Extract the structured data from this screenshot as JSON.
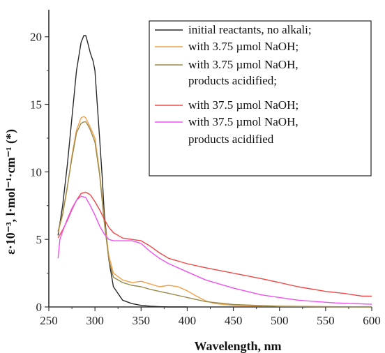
{
  "chart_data": {
    "type": "line",
    "title": "",
    "xlabel": "Wavelength, nm",
    "ylabel": "ε·10⁻³, l·mol⁻¹·cm⁻¹ (*)",
    "xlim": [
      250,
      600
    ],
    "ylim": [
      0,
      22
    ],
    "xticks": [
      250,
      300,
      350,
      400,
      450,
      500,
      550,
      600
    ],
    "yticks": [
      0,
      5,
      10,
      15,
      20
    ],
    "xtick_labels": [
      "250",
      "300",
      "350",
      "400",
      "450",
      "500",
      "550",
      "600"
    ],
    "ytick_labels": [
      "0",
      "5",
      "10",
      "15",
      "20"
    ],
    "grid": false,
    "legend_position": "top-right",
    "series": [
      {
        "name": "initial reactants, no alkali;",
        "color": "#2a2a2a",
        "x": [
          260,
          265,
          270,
          275,
          280,
          285,
          288,
          290,
          292,
          295,
          298,
          300,
          302,
          305,
          308,
          310,
          315,
          320,
          330,
          340,
          350,
          360,
          370,
          380,
          400
        ],
        "y": [
          5.3,
          7.5,
          10.5,
          14.0,
          17.5,
          19.6,
          20.1,
          20.1,
          19.6,
          18.8,
          18.2,
          17.5,
          15.5,
          12.5,
          9.5,
          7.0,
          3.5,
          1.5,
          0.5,
          0.25,
          0.12,
          0.05,
          0.02,
          0.0,
          0.0
        ]
      },
      {
        "name": "with 3.75 µmol NaOH;",
        "color": "#f2a04a",
        "x": [
          260,
          265,
          270,
          275,
          280,
          285,
          288,
          290,
          292,
          295,
          300,
          305,
          310,
          315,
          320,
          330,
          340,
          350,
          360,
          370,
          380,
          390,
          400,
          410,
          420,
          430,
          450,
          500,
          550,
          600
        ],
        "y": [
          5.5,
          6.8,
          8.8,
          11.2,
          13.1,
          14.0,
          14.1,
          14.0,
          13.7,
          13.3,
          12.5,
          10.0,
          6.5,
          3.8,
          2.5,
          2.0,
          1.8,
          1.9,
          1.7,
          1.5,
          1.6,
          1.5,
          1.2,
          0.8,
          0.45,
          0.25,
          0.12,
          0.05,
          0.02,
          0.0
        ]
      },
      {
        "name": "with 3.75 µmol NaOH, products acidified;",
        "color": "#9a8a4a",
        "x": [
          260,
          265,
          270,
          275,
          280,
          285,
          288,
          290,
          292,
          295,
          300,
          305,
          310,
          315,
          320,
          330,
          340,
          350,
          360,
          370,
          380,
          390,
          400,
          420,
          450,
          500,
          550,
          600
        ],
        "y": [
          5.6,
          6.9,
          8.9,
          11.0,
          12.9,
          13.6,
          13.7,
          13.7,
          13.5,
          13.1,
          12.2,
          9.8,
          6.3,
          3.5,
          2.2,
          1.8,
          1.6,
          1.5,
          1.3,
          1.15,
          1.0,
          0.85,
          0.7,
          0.4,
          0.18,
          0.05,
          0.02,
          0.0
        ]
      },
      {
        "name": "with 37.5 µmol NaOH;",
        "color": "#f04848",
        "x": [
          260,
          265,
          270,
          275,
          280,
          285,
          290,
          295,
          300,
          305,
          310,
          315,
          320,
          330,
          340,
          350,
          360,
          370,
          380,
          400,
          420,
          450,
          480,
          500,
          520,
          550,
          570,
          580,
          590,
          600
        ],
        "y": [
          5.1,
          5.7,
          6.4,
          7.2,
          7.9,
          8.4,
          8.5,
          8.3,
          7.8,
          7.2,
          6.5,
          5.9,
          5.5,
          5.1,
          5.0,
          4.9,
          4.5,
          4.0,
          3.6,
          3.2,
          2.9,
          2.5,
          2.1,
          1.8,
          1.5,
          1.15,
          1.0,
          0.9,
          0.8,
          0.8
        ]
      },
      {
        "name": "with 37.5 µmol NaOH, products acidified",
        "color": "#f050f0",
        "x": [
          260,
          262,
          265,
          270,
          275,
          280,
          285,
          290,
          295,
          300,
          305,
          310,
          315,
          320,
          330,
          340,
          350,
          360,
          370,
          380,
          400,
          420,
          450,
          480,
          500,
          520,
          540,
          560,
          580,
          600
        ],
        "y": [
          3.6,
          5.0,
          5.6,
          6.5,
          7.3,
          7.9,
          8.2,
          8.1,
          7.5,
          6.8,
          6.0,
          5.4,
          5.0,
          4.9,
          4.9,
          4.9,
          4.7,
          4.1,
          3.6,
          3.2,
          2.6,
          2.0,
          1.4,
          0.9,
          0.7,
          0.5,
          0.4,
          0.3,
          0.25,
          0.2
        ]
      }
    ],
    "legend_lines": [
      {
        "text": "initial reactants, no alkali;",
        "series": 0
      },
      {
        "text": "with 3.75 µmol NaOH;",
        "series": 1
      },
      {
        "text": "with 3.75 µmol NaOH,",
        "series": 2
      },
      {
        "text": "products acidified;",
        "series": -1
      },
      {
        "text": "with 37.5 µmol NaOH;",
        "series": 3
      },
      {
        "text": "with 37.5 µmol NaOH,",
        "series": 4
      },
      {
        "text": "products acidified",
        "series": -1
      }
    ]
  }
}
